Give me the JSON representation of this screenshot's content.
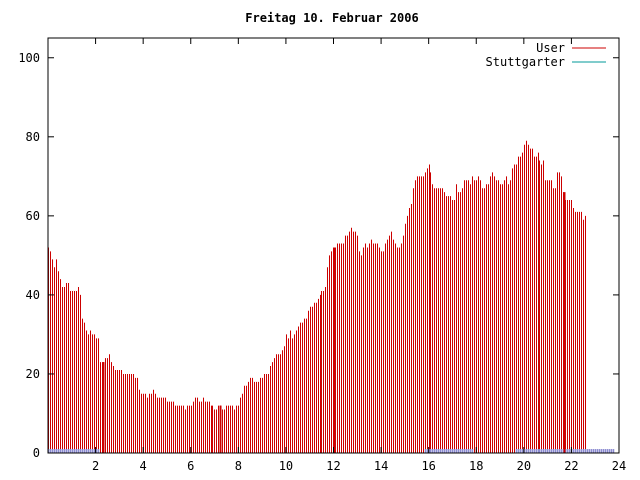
{
  "chart_data": {
    "type": "bar",
    "title": "Freitag 10. Februar 2006",
    "xlabel": "",
    "ylabel": "",
    "xlim": [
      0,
      24
    ],
    "ylim": [
      0,
      105
    ],
    "xticks": [
      2,
      4,
      6,
      8,
      10,
      12,
      14,
      16,
      18,
      20,
      22,
      24
    ],
    "yticks": [
      0,
      20,
      40,
      60,
      80,
      100
    ],
    "grid": false,
    "legend": "top-right",
    "colors": {
      "user": "#cc0000",
      "stuttgarter": "#009999",
      "stuttgarter_fill": "#8a8ad0"
    },
    "series": [
      {
        "name": "User",
        "x_start": 0,
        "x_step": 0.0833,
        "values": [
          52,
          51,
          49,
          47,
          49,
          46,
          44,
          42,
          42,
          43,
          43,
          41,
          41,
          41,
          41,
          42,
          40,
          34,
          33,
          31,
          30,
          31,
          30,
          30,
          29,
          29,
          23,
          23,
          23,
          24,
          24,
          25,
          23,
          22,
          21,
          21,
          21,
          21,
          20,
          20,
          20,
          20,
          20,
          20,
          19,
          19,
          16,
          15,
          15,
          15,
          14,
          15,
          15,
          16,
          15,
          14,
          14,
          14,
          14,
          14,
          13,
          13,
          13,
          13,
          12,
          12,
          12,
          12,
          12,
          11,
          12,
          12,
          12,
          13,
          14,
          14,
          13,
          13,
          14,
          13,
          13,
          13,
          12,
          12,
          11,
          11,
          12,
          12,
          11,
          11,
          12,
          12,
          12,
          12,
          11,
          12,
          12,
          14,
          15,
          17,
          17,
          18,
          19,
          19,
          18,
          18,
          18,
          19,
          19,
          20,
          20,
          20,
          22,
          23,
          24,
          25,
          25,
          25,
          26,
          27,
          30,
          29,
          31,
          29,
          30,
          31,
          32,
          33,
          33,
          34,
          34,
          36,
          37,
          37,
          38,
          38,
          39,
          40,
          41,
          41,
          42,
          47,
          50,
          51,
          52,
          52,
          53,
          53,
          53,
          53,
          55,
          55,
          56,
          57,
          56,
          56,
          55,
          51,
          50,
          52,
          53,
          52,
          53,
          54,
          53,
          53,
          53,
          52,
          51,
          51,
          53,
          54,
          55,
          56,
          54,
          53,
          52,
          52,
          53,
          55,
          58,
          60,
          62,
          63,
          67,
          69,
          70,
          70,
          70,
          70,
          71,
          72,
          73,
          71,
          68,
          67,
          67,
          67,
          67,
          67,
          66,
          65,
          65,
          65,
          64,
          64,
          68,
          66,
          66,
          67,
          69,
          69,
          69,
          68,
          70,
          69,
          69,
          70,
          69,
          67,
          67,
          68,
          68,
          70,
          71,
          70,
          69,
          69,
          68,
          68,
          69,
          70,
          68,
          69,
          72,
          73,
          73,
          75,
          75,
          76,
          78,
          79,
          78,
          77,
          77,
          75,
          75,
          76,
          74,
          73,
          74,
          69,
          69,
          69,
          69,
          67,
          67,
          71,
          71,
          70,
          66,
          64,
          64,
          64,
          64,
          62,
          61,
          61,
          61,
          61,
          59,
          60
        ]
      },
      {
        "name": "Stuttgarter",
        "x_start": 0,
        "x_step": 0.0833,
        "values": [
          1,
          1,
          1,
          1,
          1,
          1,
          1,
          1,
          1,
          1,
          1,
          1,
          1,
          1,
          1,
          1,
          1,
          1,
          1,
          1,
          1,
          1,
          1,
          1,
          1,
          1,
          0,
          0,
          0,
          0,
          0,
          0,
          0,
          0,
          0,
          0,
          0,
          0,
          0,
          0,
          0,
          0,
          0,
          0,
          0,
          0,
          0,
          0,
          0,
          0,
          0,
          0,
          0,
          0,
          0,
          0,
          0,
          0,
          0,
          0,
          0,
          0,
          0,
          0,
          0,
          0,
          0,
          0,
          0,
          0,
          0,
          0,
          0,
          0,
          0,
          0,
          0,
          0,
          0,
          0,
          0,
          0,
          0,
          0,
          0,
          0,
          0,
          0,
          0,
          0,
          0,
          0,
          0,
          0,
          0,
          0,
          0,
          0,
          0,
          0,
          0,
          0,
          0,
          0,
          0,
          0,
          0,
          0,
          0,
          0,
          0,
          0,
          0,
          0,
          0,
          0,
          0,
          0,
          0,
          0,
          0,
          0,
          0,
          0,
          0,
          0,
          0,
          0,
          0,
          0,
          0,
          0,
          0,
          0,
          0,
          0,
          0,
          0,
          0,
          0,
          0,
          0,
          0,
          0,
          0,
          0,
          0,
          0,
          0,
          0,
          0,
          0,
          0,
          0,
          0,
          0,
          0,
          0,
          0,
          0,
          0,
          0,
          0,
          0,
          0,
          0,
          0,
          0,
          0,
          0,
          0,
          0,
          0,
          0,
          0,
          0,
          0,
          0,
          0,
          0,
          0,
          0,
          0,
          0,
          0,
          0,
          0,
          0,
          0,
          0,
          1,
          1,
          1,
          1,
          1,
          1,
          1,
          1,
          1,
          1,
          1,
          1,
          1,
          1,
          1,
          1,
          1,
          1,
          1,
          1,
          1,
          1,
          1,
          1,
          1,
          0,
          0,
          0,
          0,
          0,
          0,
          0,
          0,
          0,
          0,
          0,
          0,
          0,
          0,
          0,
          0,
          0,
          0,
          0,
          0,
          0,
          1,
          1,
          1,
          1,
          1,
          1,
          1,
          1,
          1,
          1,
          1,
          1,
          1,
          1,
          1,
          1,
          1,
          1,
          1,
          1,
          1,
          1,
          1,
          1,
          1,
          1,
          1,
          1,
          1,
          1,
          1,
          1,
          1,
          1,
          1,
          1,
          1,
          1,
          1,
          1,
          1,
          1,
          1,
          1,
          1,
          1,
          1,
          1,
          1,
          1
        ]
      }
    ],
    "highlights": [
      2.33,
      7.25,
      12.0,
      21.67
    ]
  }
}
